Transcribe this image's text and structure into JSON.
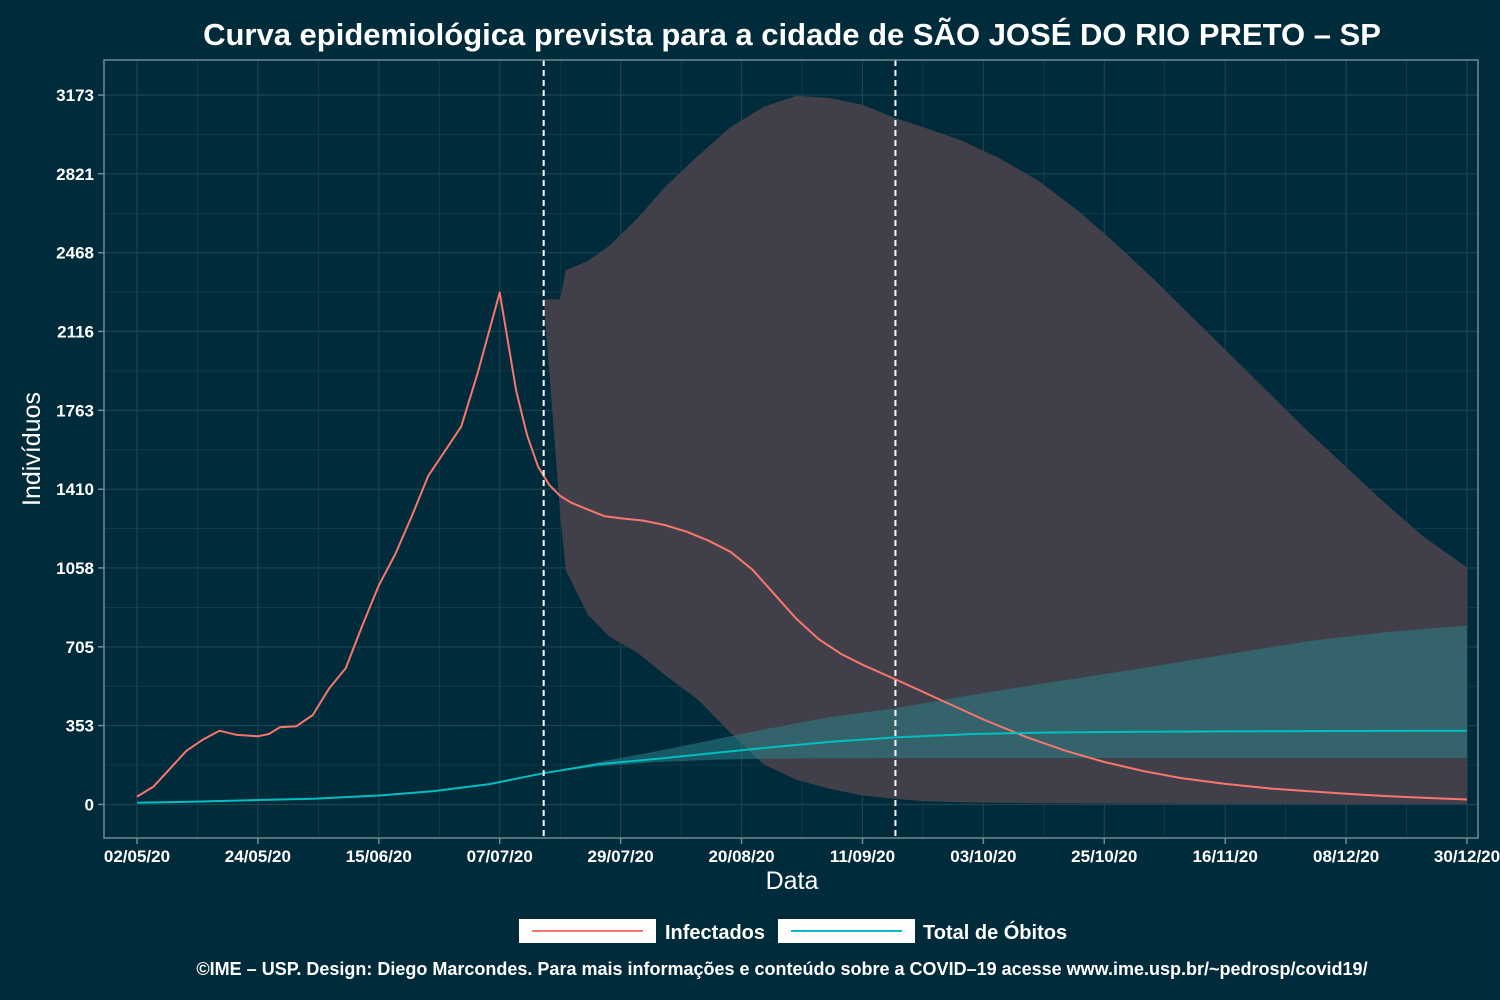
{
  "chart_data": {
    "type": "line",
    "title": "Curva epidemiológica prevista para a cidade de SÃO JOSÉ DO RIO PRETO – SP",
    "xlabel": "Data",
    "ylabel": "Indivíduos",
    "xlim": [
      "2020-04-26",
      "2021-01-01"
    ],
    "ylim": [
      -150,
      3330
    ],
    "x_ticks": [
      "2020-05-02",
      "2020-05-24",
      "2020-06-15",
      "2020-07-07",
      "2020-07-29",
      "2020-08-20",
      "2020-09-11",
      "2020-10-03",
      "2020-10-25",
      "2020-11-16",
      "2020-12-08",
      "2020-12-30"
    ],
    "x_tick_labels": [
      "02/05/20",
      "24/05/20",
      "15/06/20",
      "07/07/20",
      "29/07/20",
      "20/08/20",
      "11/09/20",
      "03/10/20",
      "25/10/20",
      "16/11/20",
      "08/12/20",
      "30/12/20"
    ],
    "y_ticks": [
      0,
      353,
      705,
      1058,
      1410,
      1763,
      2116,
      2468,
      2821,
      3173
    ],
    "y_tick_labels": [
      "0",
      "353",
      "705",
      "1058",
      "1410",
      "1763",
      "2116",
      "2468",
      "2821",
      "3173"
    ],
    "vlines": [
      "2020-07-15",
      "2020-09-17"
    ],
    "grid": true,
    "legend_position": "bottom",
    "series": [
      {
        "name": "Infectados",
        "color": "#f8766d",
        "x": [
          "2020-05-02",
          "2020-05-05",
          "2020-05-08",
          "2020-05-11",
          "2020-05-14",
          "2020-05-17",
          "2020-05-20",
          "2020-05-24",
          "2020-05-26",
          "2020-05-28",
          "2020-05-31",
          "2020-06-03",
          "2020-06-06",
          "2020-06-09",
          "2020-06-12",
          "2020-06-15",
          "2020-06-18",
          "2020-06-21",
          "2020-06-24",
          "2020-06-27",
          "2020-06-30",
          "2020-07-03",
          "2020-07-07",
          "2020-07-10",
          "2020-07-12",
          "2020-07-14",
          "2020-07-16",
          "2020-07-18",
          "2020-07-20",
          "2020-07-23",
          "2020-07-26",
          "2020-07-29",
          "2020-08-02",
          "2020-08-06",
          "2020-08-10",
          "2020-08-14",
          "2020-08-18",
          "2020-08-22",
          "2020-08-26",
          "2020-08-30",
          "2020-09-03",
          "2020-09-07",
          "2020-09-11",
          "2020-09-17",
          "2020-09-25",
          "2020-10-03",
          "2020-10-11",
          "2020-10-18",
          "2020-10-25",
          "2020-11-01",
          "2020-11-08",
          "2020-11-16",
          "2020-11-24",
          "2020-12-01",
          "2020-12-08",
          "2020-12-15",
          "2020-12-22",
          "2020-12-30"
        ],
        "values": [
          35,
          80,
          160,
          240,
          290,
          330,
          312,
          305,
          315,
          345,
          350,
          400,
          520,
          610,
          800,
          980,
          1120,
          1290,
          1470,
          1580,
          1690,
          1930,
          2290,
          1850,
          1650,
          1510,
          1430,
          1380,
          1350,
          1320,
          1290,
          1280,
          1270,
          1250,
          1220,
          1180,
          1130,
          1050,
          940,
          830,
          740,
          675,
          625,
          560,
          470,
          380,
          300,
          240,
          190,
          150,
          118,
          92,
          72,
          60,
          48,
          38,
          30,
          22
        ]
      },
      {
        "name": "Total de Óbitos",
        "color": "#00bfc4",
        "x": [
          "2020-05-02",
          "2020-05-12",
          "2020-05-24",
          "2020-06-03",
          "2020-06-15",
          "2020-06-25",
          "2020-07-05",
          "2020-07-15",
          "2020-07-25",
          "2020-08-05",
          "2020-08-15",
          "2020-08-25",
          "2020-09-05",
          "2020-09-17",
          "2020-10-01",
          "2020-10-15",
          "2020-11-01",
          "2020-11-16",
          "2020-12-01",
          "2020-12-15",
          "2020-12-30"
        ],
        "values": [
          8,
          12,
          20,
          26,
          40,
          60,
          90,
          140,
          180,
          205,
          230,
          255,
          280,
          300,
          315,
          322,
          325,
          327,
          328,
          329,
          330
        ]
      }
    ],
    "bands": [
      {
        "name": "Infectados",
        "color": "#f8766d",
        "x": [
          "2020-07-15",
          "2020-07-18",
          "2020-07-19",
          "2020-07-23",
          "2020-07-27",
          "2020-08-01",
          "2020-08-06",
          "2020-08-12",
          "2020-08-18",
          "2020-08-24",
          "2020-08-30",
          "2020-09-05",
          "2020-09-11",
          "2020-09-17",
          "2020-09-22",
          "2020-09-29",
          "2020-10-06",
          "2020-10-13",
          "2020-10-20",
          "2020-10-27",
          "2020-11-03",
          "2020-11-10",
          "2020-11-17",
          "2020-11-24",
          "2020-12-01",
          "2020-12-08",
          "2020-12-15",
          "2020-12-22",
          "2020-12-30"
        ],
        "lower": [
          2260,
          1300,
          1050,
          850,
          750,
          680,
          580,
          470,
          320,
          180,
          110,
          70,
          40,
          25,
          15,
          10,
          8,
          6,
          5,
          4,
          4,
          3,
          3,
          3,
          3,
          2,
          2,
          2,
          2
        ],
        "upper": [
          2260,
          2260,
          2390,
          2430,
          2500,
          2620,
          2760,
          2900,
          3030,
          3120,
          3170,
          3160,
          3130,
          3070,
          3030,
          2970,
          2890,
          2790,
          2660,
          2510,
          2350,
          2180,
          2010,
          1840,
          1670,
          1510,
          1350,
          1200,
          1060
        ]
      },
      {
        "name": "Total de Óbitos",
        "color": "#00bfc4",
        "x": [
          "2020-07-15",
          "2020-07-25",
          "2020-08-05",
          "2020-08-15",
          "2020-08-25",
          "2020-09-05",
          "2020-09-17",
          "2020-10-01",
          "2020-10-15",
          "2020-11-01",
          "2020-11-16",
          "2020-12-01",
          "2020-12-15",
          "2020-12-30"
        ],
        "lower": [
          140,
          170,
          190,
          200,
          205,
          207,
          208,
          208,
          208,
          208,
          208,
          208,
          208,
          208
        ],
        "upper": [
          140,
          190,
          240,
          290,
          340,
          390,
          430,
          490,
          545,
          610,
          670,
          730,
          770,
          800
        ]
      }
    ]
  },
  "footer": "©IME – USP. Design: Diego Marcondes. Para mais informações e conteúdo sobre a COVID–19 acesse www.ime.usp.br/~pedrosp/covid19/",
  "colors": {
    "background": "#002b3a",
    "ribbon": "#41404a",
    "grid": "#1c4450",
    "axis": "#6f8a93",
    "legend_key_bg": "#ffffff"
  }
}
